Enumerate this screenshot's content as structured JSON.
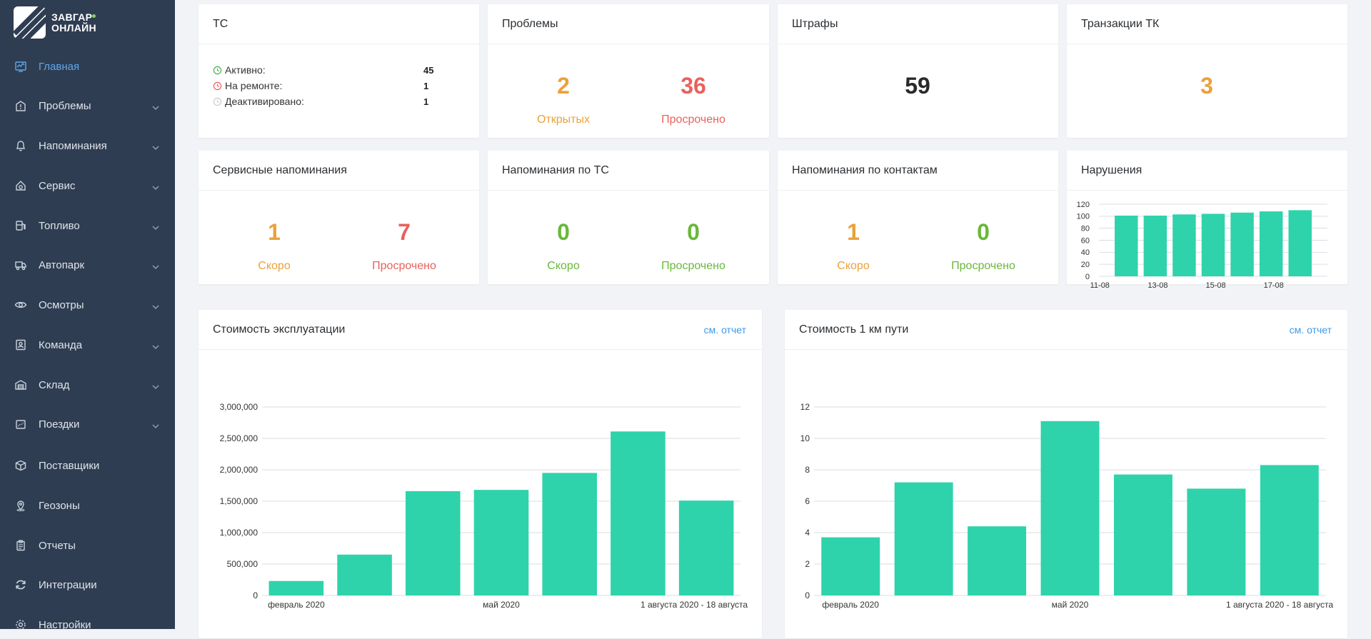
{
  "brand": {
    "line1": "ЗАВГАР",
    "line2": "ОНЛАЙН"
  },
  "sidebar": {
    "items": [
      {
        "label": "Главная",
        "icon": "dashboard-icon",
        "active": true,
        "has_children": false
      },
      {
        "label": "Проблемы",
        "icon": "warning-icon",
        "has_children": true
      },
      {
        "label": "Напоминания",
        "icon": "bell-icon",
        "has_children": true
      },
      {
        "label": "Сервис",
        "icon": "wrench-icon",
        "has_children": true
      },
      {
        "label": "Топливо",
        "icon": "fuel-icon",
        "has_children": true
      },
      {
        "label": "Автопарк",
        "icon": "truck-icon",
        "has_children": true
      },
      {
        "label": "Осмотры",
        "icon": "eye-icon",
        "has_children": true
      },
      {
        "label": "Команда",
        "icon": "id-card-icon",
        "has_children": true
      },
      {
        "label": "Склад",
        "icon": "warehouse-icon",
        "has_children": true
      },
      {
        "label": "Поездки",
        "icon": "route-icon",
        "has_children": true
      },
      {
        "label": "Поставщики",
        "icon": "box-icon",
        "has_children": false
      },
      {
        "label": "Геозоны",
        "icon": "map-pin-icon",
        "has_children": false
      },
      {
        "label": "Отчеты",
        "icon": "clipboard-icon",
        "has_children": false
      },
      {
        "label": "Интеграции",
        "icon": "sync-icon",
        "has_children": false
      },
      {
        "label": "Настройки",
        "icon": "gear-icon",
        "has_children": false
      }
    ]
  },
  "cards": {
    "ts": {
      "title": "ТС",
      "rows": [
        {
          "label": "Активно:",
          "value": "45",
          "color": "#4caf50"
        },
        {
          "label": "На ремонте:",
          "value": "1",
          "color": "#e8625d"
        },
        {
          "label": "Деактивировано:",
          "value": "1",
          "color": "#cccccc"
        }
      ]
    },
    "problems": {
      "title": "Проблемы",
      "open_value": "2",
      "open_label": "Открытых",
      "overdue_value": "36",
      "overdue_label": "Просрочено"
    },
    "fines": {
      "title": "Штрафы",
      "value": "59"
    },
    "transactions": {
      "title": "Транзакции ТК",
      "value": "3"
    },
    "service_reminders": {
      "title": "Сервисные напоминания",
      "soon_value": "1",
      "soon_label": "Скоро",
      "overdue_value": "7",
      "overdue_label": "Просрочено"
    },
    "vehicle_reminders": {
      "title": "Напоминания по ТС",
      "soon_value": "0",
      "soon_label": "Скоро",
      "overdue_value": "0",
      "overdue_label": "Просрочено"
    },
    "contact_reminders": {
      "title": "Напоминания по контактам",
      "soon_value": "1",
      "soon_label": "Скоро",
      "overdue_value": "0",
      "overdue_label": "Просрочено"
    },
    "violations": {
      "title": "Нарушения"
    },
    "operating_cost": {
      "title": "Стоимость эксплуатации",
      "link": "см. отчет"
    },
    "cost_per_km": {
      "title": "Стоимость 1 км пути",
      "link": "см. отчет"
    }
  },
  "colors": {
    "bar": "#2ed3ab",
    "orange": "#eba13c",
    "red": "#e8625d",
    "green": "#69b838",
    "sidebar": "#2f3d52",
    "link": "#3d9ae8"
  },
  "chart_data": [
    {
      "id": "violations",
      "type": "bar",
      "x_tick_labels": [
        "11-08",
        "13-08",
        "15-08",
        "17-08"
      ],
      "values": [
        101,
        101,
        103,
        104,
        106,
        108,
        110
      ],
      "y_ticks": [
        0,
        20,
        40,
        60,
        80,
        100,
        120
      ],
      "y_tick_labels": [
        "0",
        "20",
        "40",
        "60",
        "80",
        "100",
        "120"
      ],
      "ylim": [
        0,
        120
      ],
      "grid": true
    },
    {
      "id": "operating_cost",
      "type": "bar",
      "x_tick_labels": [
        "февраль 2020",
        "май 2020",
        "1 августа 2020 - 18 августа"
      ],
      "values": [
        230000,
        650000,
        1660000,
        1680000,
        1950000,
        2610000,
        1510000
      ],
      "y_ticks": [
        0,
        500000,
        1000000,
        1500000,
        2000000,
        2500000,
        3000000
      ],
      "y_tick_labels": [
        "0",
        "500,000",
        "1,000,000",
        "1,500,000",
        "2,000,000",
        "2,500,000",
        "3,000,000"
      ],
      "ylim": [
        0,
        3000000
      ],
      "grid": true
    },
    {
      "id": "cost_per_km",
      "type": "bar",
      "x_tick_labels": [
        "февраль 2020",
        "май 2020",
        "1 августа 2020 - 18 августа"
      ],
      "values": [
        3.7,
        7.2,
        4.4,
        11.1,
        7.7,
        6.8,
        8.3
      ],
      "y_ticks": [
        0,
        2,
        4,
        6,
        8,
        10,
        12
      ],
      "y_tick_labels": [
        "0",
        "2",
        "4",
        "6",
        "8",
        "10",
        "12"
      ],
      "ylim": [
        0,
        12
      ],
      "grid": true
    }
  ]
}
